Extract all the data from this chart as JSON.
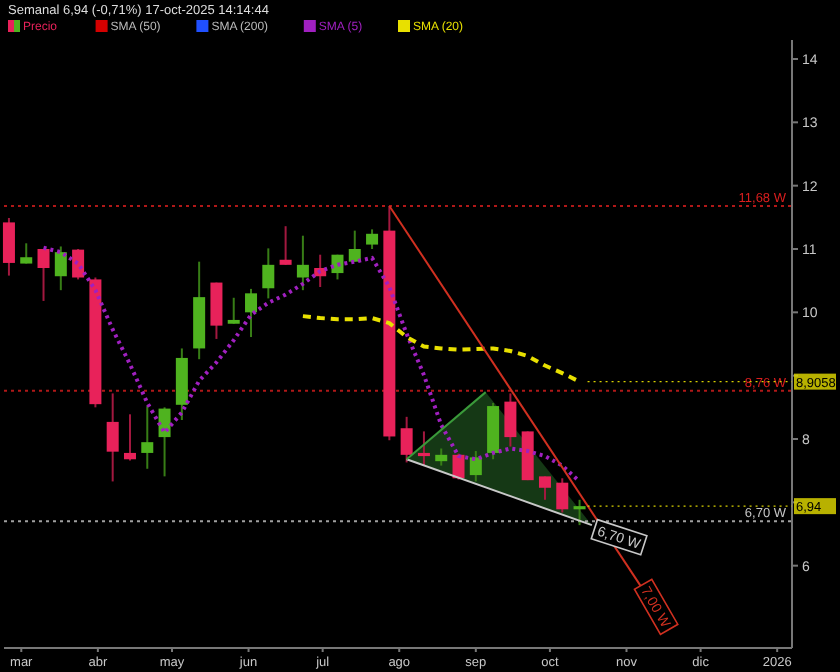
{
  "chart_data": {
    "type": "candlestick",
    "title": "Semanal 6,94 (-0,71%) 17-oct-2025 14:14:44",
    "legend": "top left",
    "grid": false,
    "x": [
      "2025-02-24",
      "2025-03-03",
      "2025-03-10",
      "2025-03-17",
      "2025-03-24",
      "2025-03-31",
      "2025-04-07",
      "2025-04-14",
      "2025-04-21",
      "2025-04-28",
      "2025-05-05",
      "2025-05-12",
      "2025-05-19",
      "2025-05-26",
      "2025-06-02",
      "2025-06-09",
      "2025-06-16",
      "2025-06-23",
      "2025-06-30",
      "2025-07-07",
      "2025-07-14",
      "2025-07-21",
      "2025-07-28",
      "2025-08-04",
      "2025-08-11",
      "2025-08-18",
      "2025-08-25",
      "2025-09-01",
      "2025-09-08",
      "2025-09-15",
      "2025-09-22",
      "2025-09-29",
      "2025-10-06",
      "2025-10-13"
    ],
    "xlim": [
      "2025-02-22",
      "2026-01-07"
    ],
    "xticks": [
      {
        "value": "2025-03-01",
        "label": "mar"
      },
      {
        "value": "2025-04-01",
        "label": "abr"
      },
      {
        "value": "2025-05-01",
        "label": "may"
      },
      {
        "value": "2025-06-01",
        "label": "jun"
      },
      {
        "value": "2025-07-01",
        "label": "jul"
      },
      {
        "value": "2025-08-01",
        "label": "ago"
      },
      {
        "value": "2025-09-01",
        "label": "sep"
      },
      {
        "value": "2025-10-01",
        "label": "oct"
      },
      {
        "value": "2025-11-01",
        "label": "nov"
      },
      {
        "value": "2025-12-01",
        "label": "dic"
      },
      {
        "value": "2026-01-01",
        "label": "2026"
      }
    ],
    "ylim": [
      4.7,
      14.3
    ],
    "yticks": [
      6,
      {
        "value": 7,
        "label": null
      },
      8,
      {
        "value": 9,
        "label": null
      },
      10,
      11,
      12,
      13,
      14
    ],
    "series": [
      {
        "name": "Precio",
        "colors": [
          "#e8225a",
          "#4fb31f",
          "#e8225a",
          "#4fb31f",
          "#e8225a",
          "#e8225a",
          "#e8225a",
          "#e8225a",
          "#4fb31f",
          "#4fb31f",
          "#4fb31f",
          "#4fb31f",
          "#e8225a",
          "#4fb31f",
          "#4fb31f",
          "#4fb31f",
          "#e8225a",
          "#4fb31f",
          "#e8225a",
          "#4fb31f",
          "#4fb31f",
          "#4fb31f",
          "#e8225a",
          "#e8225a",
          "#e8225a",
          "#4fb31f",
          "#e8225a",
          "#4fb31f",
          "#4fb31f",
          "#e8225a",
          "#e8225a",
          "#e8225a",
          "#e8225a",
          "#4fb31f"
        ],
        "ohlc": [
          [
            11.42,
            11.49,
            10.58,
            10.78
          ],
          [
            10.77,
            11.09,
            10.77,
            10.87
          ],
          [
            11.0,
            11.0,
            10.18,
            10.7
          ],
          [
            10.57,
            11.04,
            10.35,
            10.95
          ],
          [
            10.99,
            11.0,
            10.52,
            10.55
          ],
          [
            10.52,
            10.55,
            8.5,
            8.55
          ],
          [
            8.27,
            8.72,
            7.33,
            7.8
          ],
          [
            7.78,
            8.39,
            7.66,
            7.68
          ],
          [
            7.78,
            8.52,
            7.53,
            7.95
          ],
          [
            8.03,
            8.5,
            7.41,
            8.48
          ],
          [
            8.54,
            9.43,
            8.3,
            9.28
          ],
          [
            9.43,
            10.8,
            9.26,
            10.24
          ],
          [
            10.47,
            10.47,
            9.58,
            9.79
          ],
          [
            9.82,
            10.23,
            9.82,
            9.88
          ],
          [
            10.0,
            10.37,
            9.61,
            10.3
          ],
          [
            10.38,
            11.01,
            10.22,
            10.75
          ],
          [
            10.83,
            11.36,
            10.75,
            10.75
          ],
          [
            10.55,
            11.21,
            10.35,
            10.75
          ],
          [
            10.7,
            10.91,
            10.4,
            10.57
          ],
          [
            10.62,
            10.91,
            10.52,
            10.91
          ],
          [
            10.8,
            11.29,
            10.8,
            11.0
          ],
          [
            11.07,
            11.31,
            11.0,
            11.24
          ],
          [
            11.29,
            11.68,
            7.98,
            8.04
          ],
          [
            8.17,
            8.35,
            7.63,
            7.75
          ],
          [
            7.78,
            8.12,
            7.58,
            7.73
          ],
          [
            7.65,
            7.85,
            7.58,
            7.75
          ],
          [
            7.75,
            7.77,
            7.36,
            7.38
          ],
          [
            7.43,
            7.81,
            7.33,
            7.71
          ],
          [
            7.78,
            8.57,
            7.68,
            8.52
          ],
          [
            8.59,
            8.72,
            7.88,
            8.03
          ],
          [
            8.12,
            8.12,
            7.35,
            7.35
          ],
          [
            7.41,
            7.41,
            7.04,
            7.23
          ],
          [
            7.31,
            7.38,
            6.84,
            6.89
          ],
          [
            6.89,
            7.04,
            6.64,
            6.94
          ]
        ]
      },
      {
        "name": "SMA (5)",
        "type": "line",
        "color": "#a020c0",
        "line_style": "dotted",
        "values": [
          null,
          null,
          11.02,
          10.95,
          10.77,
          10.35,
          9.73,
          9.18,
          8.57,
          8.1,
          8.42,
          8.92,
          9.21,
          9.56,
          9.96,
          10.15,
          10.28,
          10.45,
          10.65,
          10.75,
          10.8,
          10.86,
          10.4,
          9.66,
          9.01,
          8.22,
          7.73,
          7.68,
          7.78,
          7.85,
          7.81,
          7.73,
          7.58,
          7.33
        ]
      },
      {
        "name": "SMA (20)",
        "type": "line",
        "color": "#e8e000",
        "line_style": "dashed",
        "values": [
          null,
          null,
          null,
          null,
          null,
          null,
          null,
          null,
          null,
          null,
          null,
          null,
          null,
          null,
          null,
          null,
          null,
          9.94,
          9.91,
          9.89,
          9.89,
          9.91,
          9.83,
          9.61,
          9.46,
          9.43,
          9.41,
          9.42,
          9.43,
          9.39,
          9.31,
          9.16,
          9.04,
          8.9058
        ]
      },
      {
        "type": "line",
        "color": "#d03020",
        "x": [
          "2025-07-28",
          "2025-11-13"
        ],
        "values": [
          11.68,
          5.31
        ]
      },
      {
        "type": "line",
        "color": "#c8c8c8",
        "x": [
          "2025-08-04",
          "2025-10-18"
        ],
        "values": [
          7.68,
          6.64
        ]
      },
      {
        "type": "line",
        "color": "#3a9a3a",
        "x": [
          "2025-08-04",
          "2025-09-05"
        ],
        "values": [
          7.68,
          8.74
        ]
      }
    ],
    "ref_lines": [
      {
        "axis": "y",
        "value": 11.68,
        "label": "11,68 W",
        "color": "#b01818",
        "line_style": "dotted"
      },
      {
        "axis": "y",
        "value": 8.76,
        "label": "8,76 W",
        "color": "#b01818",
        "line_style": "dotted"
      },
      {
        "axis": "y",
        "value": 6.7,
        "label": "6,70 W",
        "color": "#a0a0a0",
        "line_style": "dotted"
      }
    ],
    "annotations": [
      "SMA (50)",
      "SMA (200)",
      {
        "text": "6,70 W",
        "x": "2025-10-29",
        "y": 6.45
      },
      {
        "text": "7,00 W",
        "x": "2025-11-13",
        "y": 5.35
      },
      {
        "text": "8,9058",
        "x": "2025-10-13",
        "y": 8.9058
      },
      {
        "text": "6,94",
        "x": "2025-10-13",
        "y": 6.94
      }
    ]
  }
}
